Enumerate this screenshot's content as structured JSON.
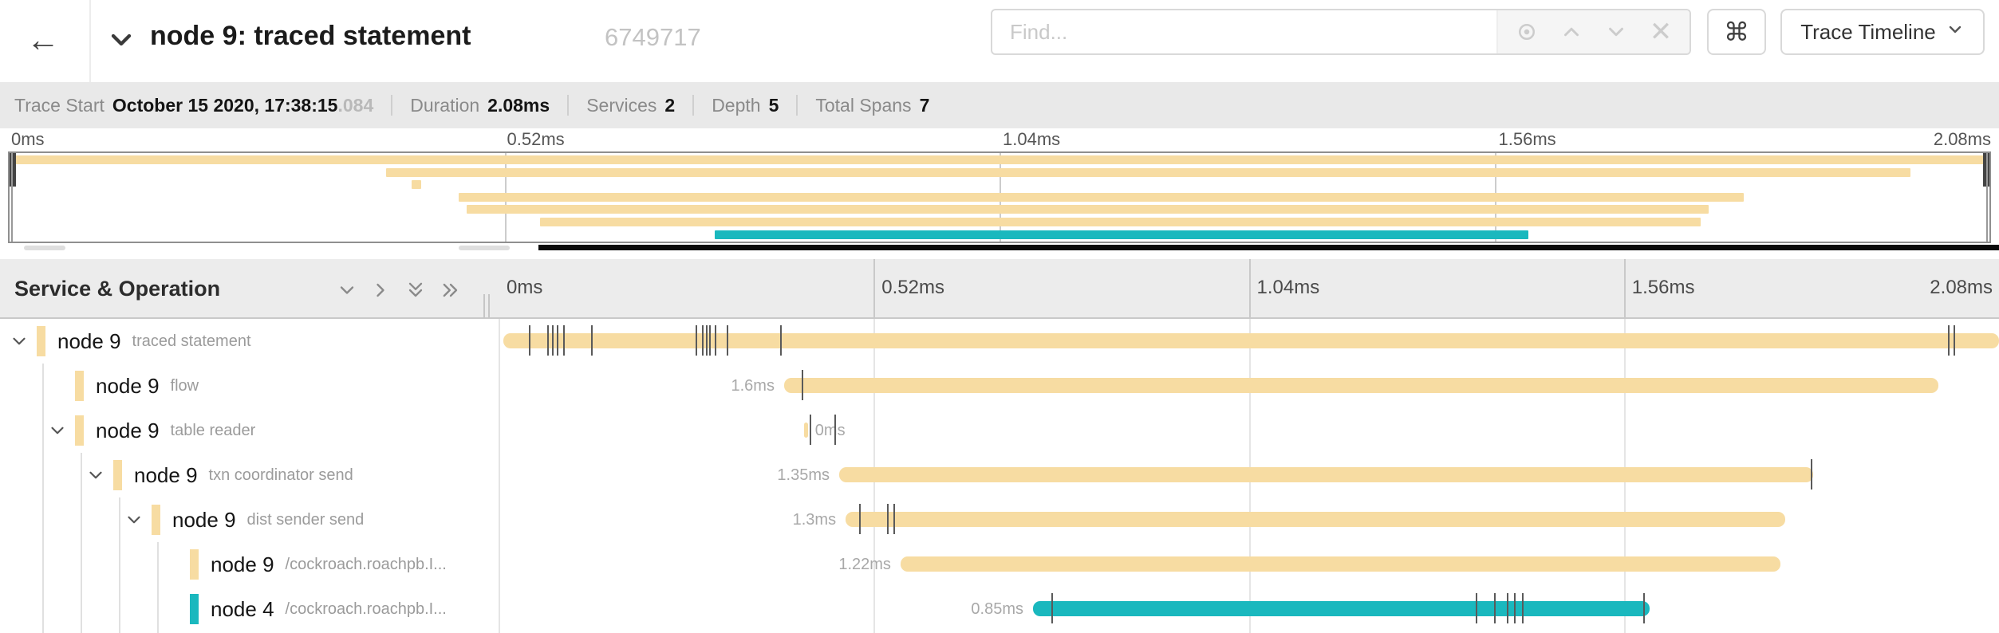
{
  "colors": {
    "tan": "#f7dca2",
    "teal": "#1ab8be"
  },
  "header": {
    "back_icon": "←",
    "title": "node 9: traced statement",
    "trace_id": "6749717",
    "find": {
      "placeholder": "Find..."
    },
    "shortcut_glyph": "⌘",
    "view_selector": {
      "label": "Trace Timeline"
    }
  },
  "summary": {
    "items": [
      {
        "label": "Trace Start",
        "value": "October 15 2020, 17:38:15",
        "suffix": ".084"
      },
      {
        "label": "Duration",
        "value": "2.08ms",
        "suffix": ""
      },
      {
        "label": "Services",
        "value": "2",
        "suffix": ""
      },
      {
        "label": "Depth",
        "value": "5",
        "suffix": ""
      },
      {
        "label": "Total Spans",
        "value": "7",
        "suffix": ""
      }
    ]
  },
  "minimap": {
    "ticks": [
      "0ms",
      "0.52ms",
      "1.04ms",
      "1.56ms",
      "2.08ms"
    ],
    "rows": [
      {
        "start": 0,
        "end": 100,
        "color": "tan"
      },
      {
        "start": 19.0,
        "end": 96.0,
        "color": "tan"
      },
      {
        "start": 20.3,
        "end": 20.8,
        "color": "tan"
      },
      {
        "start": 22.7,
        "end": 87.6,
        "color": "tan"
      },
      {
        "start": 23.1,
        "end": 85.8,
        "color": "tan"
      },
      {
        "start": 26.8,
        "end": 85.4,
        "color": "tan"
      },
      {
        "start": 35.6,
        "end": 76.7,
        "color": "teal"
      }
    ]
  },
  "timeline": {
    "left_header": "Service & Operation",
    "ticks": [
      "0ms",
      "0.52ms",
      "1.04ms",
      "1.56ms",
      "2.08ms"
    ],
    "spans": [
      {
        "service": "node 9",
        "operation": "traced statement",
        "depth": 0,
        "expandable": true,
        "color": "tan",
        "duration_label": "",
        "label_side": "none",
        "bar_start": 0.3,
        "bar_end": 100,
        "ticks": [
          2.07,
          3.3,
          3.62,
          3.93,
          4.36,
          6.22,
          13.18,
          13.61,
          13.88,
          14.09,
          14.46,
          15.26,
          18.82,
          96.65,
          97.02
        ]
      },
      {
        "service": "node 9",
        "operation": "flow",
        "depth": 1,
        "expandable": false,
        "color": "tan",
        "duration_label": "1.6ms",
        "label_side": "left",
        "bar_start": 19.03,
        "bar_end": 95.96,
        "ticks": [
          20.26
        ]
      },
      {
        "service": "node 9",
        "operation": "table reader",
        "depth": 1,
        "expandable": true,
        "color": "tan",
        "duration_label": "0ms",
        "label_side": "right",
        "bar_start": 20.35,
        "bar_end": 20.65,
        "ticks": [
          20.79,
          22.43
        ]
      },
      {
        "service": "node 9",
        "operation": "txn coordinator send",
        "depth": 2,
        "expandable": true,
        "color": "tan",
        "duration_label": "1.35ms",
        "label_side": "left",
        "bar_start": 22.7,
        "bar_end": 87.61,
        "ticks": [
          87.51
        ]
      },
      {
        "service": "node 9",
        "operation": "dist sender send",
        "depth": 3,
        "expandable": true,
        "color": "tan",
        "duration_label": "1.3ms",
        "label_side": "left",
        "bar_start": 23.13,
        "bar_end": 85.75,
        "ticks": [
          24.08,
          25.94,
          26.37
        ]
      },
      {
        "service": "node 9",
        "operation": "/cockroach.roachpb.I...",
        "depth": 4,
        "expandable": false,
        "color": "tan",
        "duration_label": "1.22ms",
        "label_side": "left",
        "bar_start": 26.79,
        "bar_end": 85.43,
        "ticks": []
      },
      {
        "service": "node 4",
        "operation": "/cockroach.roachpb.I...",
        "depth": 4,
        "expandable": false,
        "color": "teal",
        "duration_label": "0.85ms",
        "label_side": "left",
        "bar_start": 35.62,
        "bar_end": 76.71,
        "ticks": [
          36.9,
          65.18,
          66.4,
          67.25,
          67.73,
          68.26,
          76.34
        ]
      }
    ]
  }
}
